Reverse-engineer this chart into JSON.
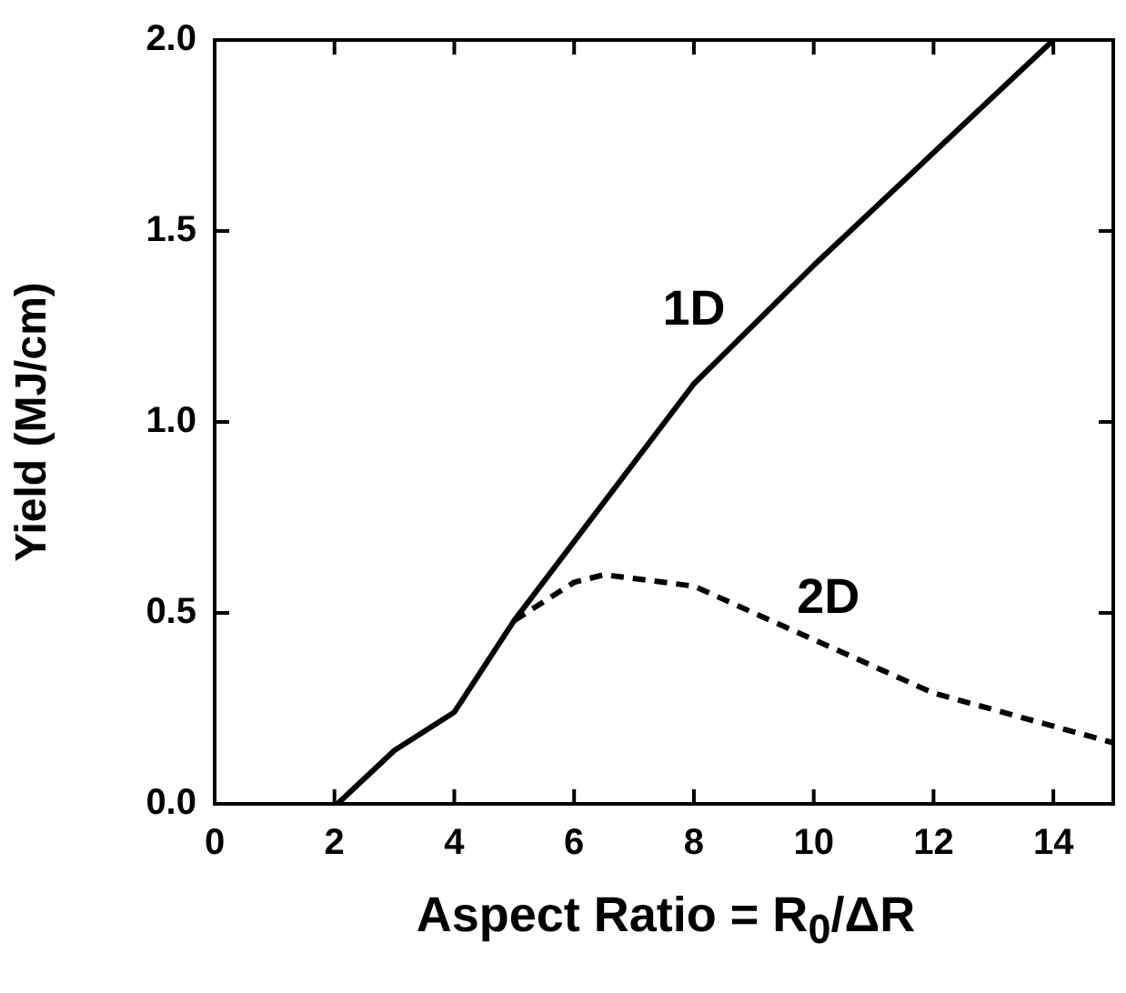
{
  "chart_data": {
    "type": "line",
    "xlabel": "Aspect Ratio = R$_{0}$/ΔR",
    "ylabel": "Yield (MJ/cm)",
    "xlim": [
      0,
      15
    ],
    "xticks": [
      0,
      2,
      4,
      6,
      8,
      10,
      12,
      14
    ],
    "ylim": [
      0,
      2
    ],
    "yticks": [
      {
        "value": 0,
        "label": "0.0"
      },
      {
        "value": 0.5,
        "label": "0.5"
      },
      {
        "value": 1,
        "label": "1.0"
      },
      {
        "value": 1.5,
        "label": "1.5"
      },
      {
        "value": 2,
        "label": "2.0"
      }
    ],
    "grid": false,
    "legend": false,
    "marker": "none",
    "series": [
      {
        "name": "1D",
        "color": "#000000",
        "line_style": "solid",
        "x": [
          2.05,
          3,
          4,
          5,
          8,
          10,
          14
        ],
        "values": [
          0,
          0.14,
          0.24,
          0.48,
          1.1,
          1.41,
          2.0
        ]
      },
      {
        "name": "2D",
        "color": "#000000",
        "line_style": "dashed",
        "x": [
          5,
          6,
          6.5,
          8,
          10,
          12,
          15
        ],
        "values": [
          0.48,
          0.58,
          0.6,
          0.57,
          0.43,
          0.29,
          0.16
        ]
      }
    ]
  }
}
